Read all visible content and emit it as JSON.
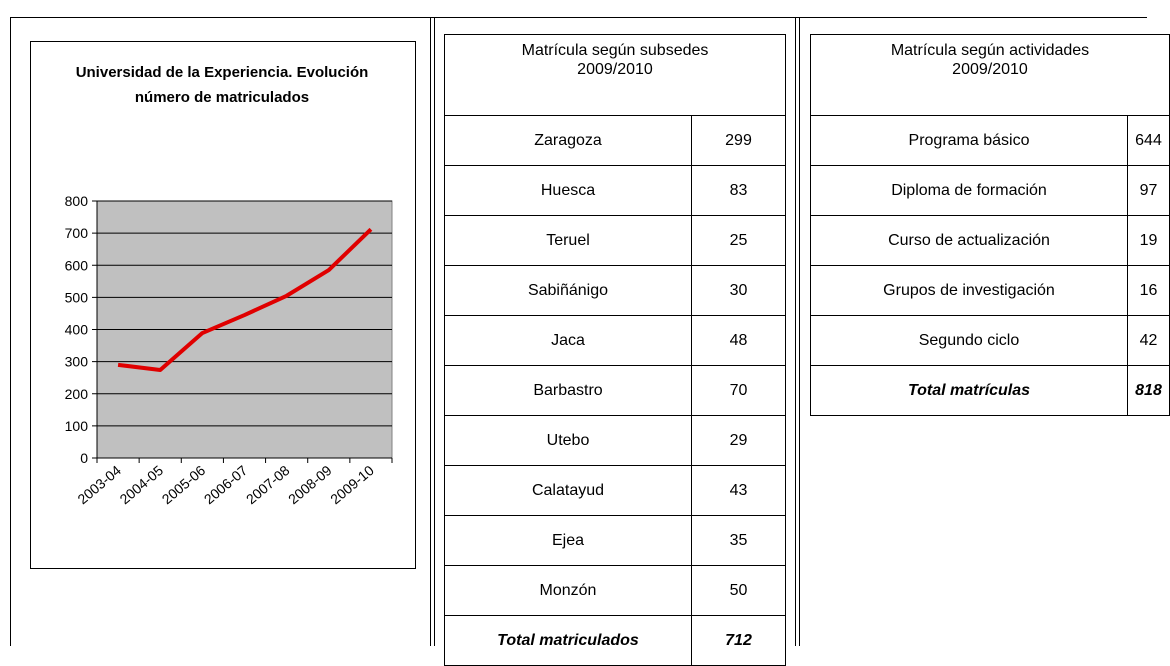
{
  "chart_data": {
    "type": "line",
    "title": "Universidad de la Experiencia. Evolución número de matriculados",
    "categories": [
      "2003-04",
      "2004-05",
      "2005-06",
      "2006-07",
      "2007-08",
      "2008-09",
      "2009-10"
    ],
    "values": [
      290,
      274,
      389,
      445,
      505,
      585,
      712
    ],
    "color": "#e00000",
    "ylim": [
      0,
      800
    ],
    "yticks": [
      0,
      100,
      200,
      300,
      400,
      500,
      600,
      700,
      800
    ],
    "grid": true
  },
  "tables": {
    "subsedes": {
      "title": "Matrícula según subsedes",
      "year": "2009/2010",
      "rows": [
        [
          "Zaragoza",
          299
        ],
        [
          "Huesca",
          83
        ],
        [
          "Teruel",
          25
        ],
        [
          "Sabiñánigo",
          30
        ],
        [
          "Jaca",
          48
        ],
        [
          "Barbastro",
          70
        ],
        [
          "Utebo",
          29
        ],
        [
          "Calatayud",
          43
        ],
        [
          "Ejea",
          35
        ],
        [
          "Monzón",
          50
        ]
      ],
      "total": [
        "Total matriculados",
        712
      ]
    },
    "actividades": {
      "title": "Matrícula según actividades",
      "year": "2009/2010",
      "rows": [
        [
          "Programa básico",
          644
        ],
        [
          "Diploma de formación",
          97
        ],
        [
          "Curso de actualización",
          19
        ],
        [
          "Grupos de investigación",
          16
        ],
        [
          "Segundo ciclo",
          42
        ]
      ],
      "total": [
        "Total matrículas",
        818
      ]
    }
  }
}
